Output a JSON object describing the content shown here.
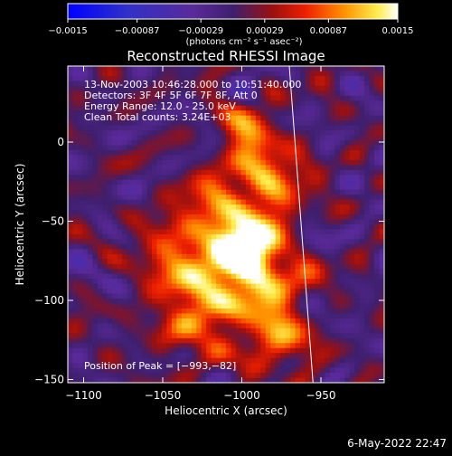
{
  "chart_data": {
    "type": "heatmap",
    "title": "Reconstructed RHESSI Image",
    "xlabel": "Heliocentric X (arcsec)",
    "ylabel": "Heliocentric Y (arcsec)",
    "xlim": [
      -1110,
      -910
    ],
    "ylim": [
      -152,
      48
    ],
    "xticks": [
      -1100,
      -1050,
      -1000,
      -950
    ],
    "xtick_labels": [
      "−1100",
      "−1050",
      "−1000",
      "−950"
    ],
    "yticks": [
      0,
      -50,
      -100,
      -150
    ],
    "ytick_labels": [
      "0",
      "−50",
      "−100",
      "−150"
    ],
    "annotations": [
      "13-Nov-2003 10:46:28.000 to 10:51:40.000",
      "Detectors: 3F 4F 5F 6F 7F 8F, Att 0",
      "Energy Range: 12.0 - 25.0 keV",
      "Clean    Total counts: 3.24E+03"
    ],
    "peak_label": "Position of Peak = [−993,−82]",
    "peak": [
      -993,
      -82
    ],
    "limb_line": [
      [
        -970,
        48
      ],
      [
        -955,
        -152
      ]
    ],
    "colorbar": {
      "range": [
        -0.0015,
        0.0015
      ],
      "ticks": [
        -0.0015,
        -0.00087,
        -0.00029,
        0.00029,
        0.00087,
        0.0015
      ],
      "tick_labels": [
        "−0.0015",
        "−0.00087",
        "−0.00029",
        "0.00029",
        "0.00087",
        "0.0015"
      ],
      "unit_label": "(photons cm⁻² s⁻¹ asec⁻²)"
    },
    "sources": [
      {
        "x": -993,
        "y": -82,
        "sigma": 18,
        "amp": 0.0015
      },
      {
        "x": -1010,
        "y": -55,
        "sigma": 20,
        "amp": 0.0011
      },
      {
        "x": -985,
        "y": -20,
        "sigma": 16,
        "amp": 0.001
      },
      {
        "x": -1030,
        "y": -110,
        "sigma": 18,
        "amp": 0.0009
      },
      {
        "x": -975,
        "y": -125,
        "sigma": 14,
        "amp": 0.0009
      },
      {
        "x": -1045,
        "y": -70,
        "sigma": 14,
        "amp": 0.0007
      },
      {
        "x": -1000,
        "y": 10,
        "sigma": 12,
        "amp": 0.0006
      }
    ],
    "colormap": [
      [
        0.0,
        "#0000ff"
      ],
      [
        0.18,
        "#3030c8"
      ],
      [
        0.38,
        "#5a2a9a"
      ],
      [
        0.5,
        "#3e1f6e"
      ],
      [
        0.62,
        "#9a1010"
      ],
      [
        0.72,
        "#ee1f00"
      ],
      [
        0.84,
        "#ff9500"
      ],
      [
        0.94,
        "#ffef50"
      ],
      [
        1.0,
        "#ffffff"
      ]
    ]
  },
  "footer": {
    "timestamp": "6-May-2022 22:47"
  }
}
